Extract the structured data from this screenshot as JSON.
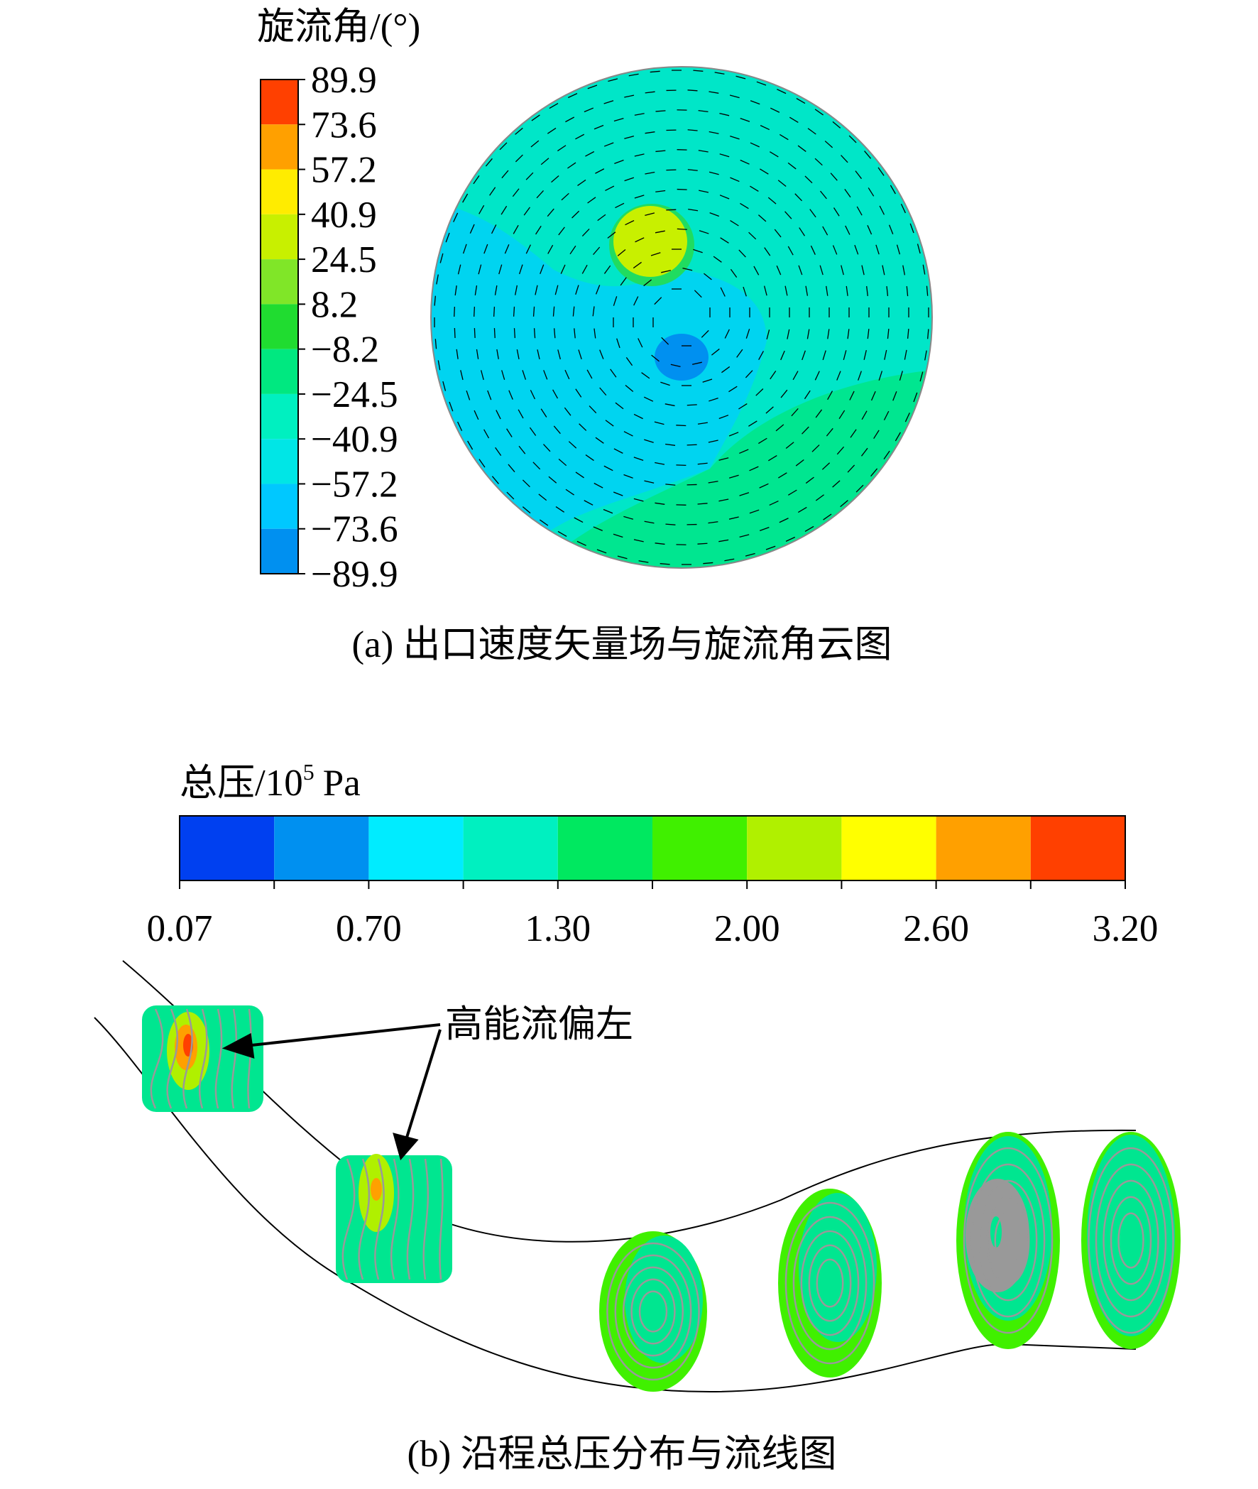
{
  "panel_a": {
    "legend_title": "旋流角/(°)",
    "colorbar_labels": [
      "89.9",
      "73.6",
      "57.2",
      "40.9",
      "24.5",
      "8.2",
      "−8.2",
      "−24.5",
      "−40.9",
      "−57.2",
      "−73.6",
      "−89.9"
    ],
    "colorbar_colors": [
      "#ff4000",
      "#ffa000",
      "#ffec00",
      "#c8f000",
      "#80e628",
      "#20dc30",
      "#00e880",
      "#00f0c0",
      "#00e6e6",
      "#00c8ff",
      "#0090f0",
      "#0040f0"
    ],
    "caption": "(a) 出口速度矢量场与旋流角云图"
  },
  "panel_b": {
    "legend_title": {
      "text": "总压/10",
      "sup": "5",
      "unit": "Pa"
    },
    "colorbar_colors": [
      "#0040f0",
      "#0090f0",
      "#00ecff",
      "#00f0c0",
      "#00e860",
      "#40f000",
      "#b0f000",
      "#ffff00",
      "#ffa000",
      "#ff4000"
    ],
    "tick_labels": [
      "0.07",
      "0.70",
      "1.30",
      "2.00",
      "2.60",
      "3.20"
    ],
    "annotation": "高能流偏左",
    "caption": "(b) 沿程总压分布与流线图"
  }
}
